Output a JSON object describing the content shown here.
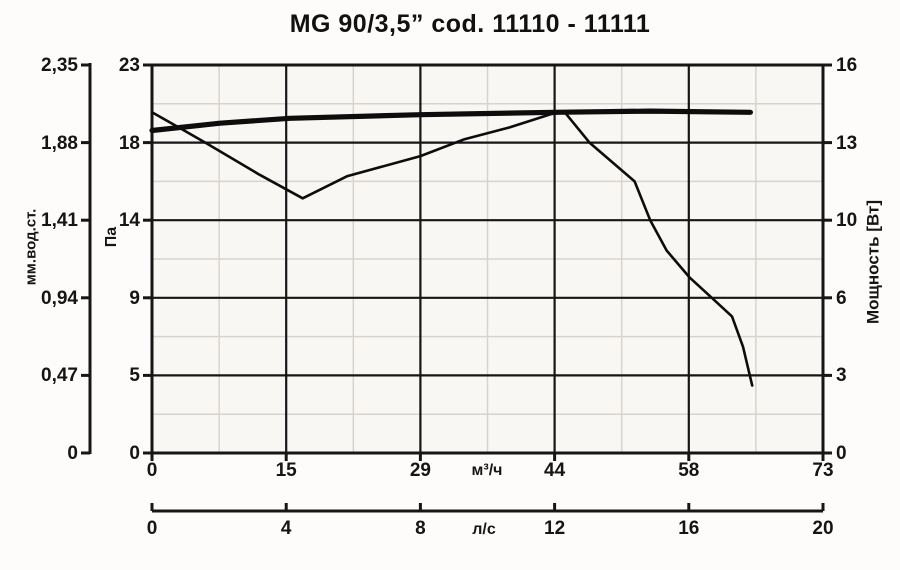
{
  "title": "MG 90/3,5” cod. 11110 - 11111",
  "chart_data": {
    "type": "line",
    "title": "MG 90/3,5” cod. 11110 - 11111",
    "grid": {
      "major": true,
      "minor": true,
      "minor_position": "midpoints"
    },
    "legend": "none",
    "x_axis": {
      "label": "м³/ч",
      "ticks": [
        "0",
        "15",
        "29",
        "44",
        "58",
        "73"
      ],
      "range": [
        0,
        73
      ]
    },
    "x_axis_secondary": {
      "label": "л/с",
      "ticks": [
        "0",
        "4",
        "8",
        "12",
        "16",
        "20"
      ],
      "range": [
        0,
        20
      ]
    },
    "y_axis_left_outer": {
      "label": "мм.вод.ст.",
      "ticks": [
        "2,35",
        "1,88",
        "1,41",
        "0,94",
        "0,47",
        "0"
      ],
      "range": [
        0,
        2.35
      ]
    },
    "y_axis_left": {
      "label": "Па",
      "ticks": [
        "23",
        "18",
        "14",
        "9",
        "5",
        "0"
      ],
      "range": [
        0,
        23
      ]
    },
    "y_axis_right": {
      "label": "Мощность [Вт]",
      "ticks": [
        "16",
        "13",
        "10",
        "6",
        "3",
        "0"
      ],
      "range": [
        0,
        16
      ]
    },
    "series": [
      {
        "name": "pressure-curve-Pa",
        "axis": "left",
        "style": "thin",
        "x": [
          0,
          2.9,
          5.8,
          11.7,
          16.4,
          21.2,
          29.2,
          34.0,
          38.9,
          43.5,
          44.9,
          47.6,
          52.5,
          54.2,
          56.0,
          58.5,
          60.9,
          63.1,
          64.3,
          65.3
        ],
        "y": [
          20.2,
          19.3,
          18.4,
          16.5,
          15.1,
          16.4,
          17.6,
          18.6,
          19.3,
          20.1,
          20.2,
          18.4,
          16.1,
          13.8,
          12.0,
          10.4,
          9.2,
          8.1,
          6.3,
          4.0
        ]
      },
      {
        "name": "power-curve-W",
        "axis": "right",
        "style": "thick",
        "x": [
          0,
          7.4,
          15.0,
          29.2,
          43.8,
          54.2,
          65.1
        ],
        "y": [
          13.3,
          13.6,
          13.8,
          13.95,
          14.05,
          14.1,
          14.05
        ]
      }
    ]
  },
  "colors": {
    "curve": "#0d0d0d",
    "major_grid": "#161616",
    "minor_grid": "#d8d3ce",
    "plot_background": "#f9f7f4",
    "page_background": "#fdfcfa"
  }
}
